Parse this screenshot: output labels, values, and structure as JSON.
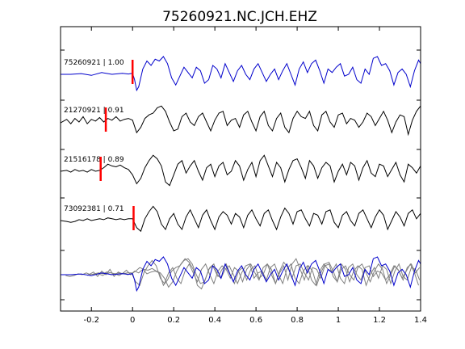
{
  "chart_data": {
    "type": "line",
    "title": "75260921.NC.JCH.EHZ",
    "xlabel": "",
    "ylabel": "",
    "xlim": [
      -0.35,
      1.4
    ],
    "xticks": [
      -0.2,
      0,
      0.2,
      0.4,
      0.6,
      0.8,
      1,
      1.2,
      1.4
    ],
    "xtick_labels": [
      "-0.2",
      "0",
      "0.2",
      "0.4",
      "0.6",
      "0.8",
      "1",
      "1.2",
      "1.4"
    ],
    "grid": false,
    "colors": {
      "master": "#0000cc",
      "trace": "#000000",
      "overlay_gray": "#808080",
      "pick": "#ff0000",
      "axes": "#000000"
    },
    "traces": [
      {
        "id": "75260921",
        "label": "75260921 | 1.00",
        "cc": 1.0,
        "color": "#0000cc",
        "pick_time": 0.0,
        "offset": 0.0,
        "times": [
          -0.35,
          -0.3,
          -0.25,
          -0.2,
          -0.15,
          -0.1,
          -0.05,
          -0.02,
          0.0,
          0.01,
          0.02,
          0.03,
          0.05,
          0.07,
          0.09,
          0.11,
          0.13,
          0.15,
          0.17,
          0.19,
          0.21,
          0.23,
          0.25,
          0.27,
          0.29,
          0.31,
          0.33,
          0.35,
          0.37,
          0.39,
          0.41,
          0.43,
          0.45,
          0.47,
          0.49,
          0.51,
          0.53,
          0.55,
          0.57,
          0.59,
          0.61,
          0.63,
          0.65,
          0.67,
          0.69,
          0.71,
          0.73,
          0.75,
          0.77,
          0.79,
          0.81,
          0.83,
          0.85,
          0.87,
          0.89,
          0.91,
          0.93,
          0.95,
          0.97,
          0.99,
          1.01,
          1.03,
          1.05,
          1.07,
          1.09,
          1.11,
          1.13,
          1.15,
          1.17,
          1.19,
          1.21,
          1.23,
          1.25,
          1.27,
          1.29,
          1.31,
          1.33,
          1.35,
          1.37,
          1.39,
          1.4
        ],
        "amplitudes": [
          0,
          0,
          0.04,
          -0.06,
          0.1,
          0.0,
          0.06,
          0.02,
          0.06,
          -0.3,
          -0.9,
          -0.7,
          0.3,
          0.75,
          0.5,
          0.85,
          0.75,
          1.0,
          0.6,
          -0.2,
          -0.6,
          -0.1,
          0.4,
          0.1,
          -0.2,
          0.4,
          0.2,
          -0.5,
          -0.3,
          0.5,
          0.3,
          -0.2,
          0.6,
          0.1,
          -0.4,
          0.2,
          0.5,
          0.0,
          -0.3,
          0.3,
          0.6,
          0.1,
          -0.4,
          0.0,
          0.3,
          -0.3,
          0.2,
          0.6,
          0.0,
          -0.6,
          0.3,
          0.7,
          0.1,
          0.6,
          0.8,
          0.2,
          -0.5,
          0.3,
          0.1,
          0.4,
          0.6,
          -0.1,
          0.0,
          0.4,
          -0.3,
          -0.5,
          0.3,
          0.0,
          0.9,
          1.0,
          0.5,
          0.6,
          0.2,
          -0.6,
          0.1,
          0.3,
          0.0,
          -0.7,
          0.2,
          0.8,
          0.6
        ]
      },
      {
        "id": "21270921",
        "label": "21270921 | 0.91",
        "cc": 0.91,
        "color": "#000000",
        "pick_time": -0.13,
        "offset": -0.13,
        "times": [
          -0.35,
          -0.32,
          -0.3,
          -0.28,
          -0.26,
          -0.24,
          -0.22,
          -0.2,
          -0.18,
          -0.16,
          -0.14,
          -0.12,
          -0.1,
          -0.08,
          -0.06,
          -0.04,
          -0.02,
          0.0,
          0.02,
          0.04,
          0.06,
          0.08,
          0.1,
          0.12,
          0.14,
          0.16,
          0.18,
          0.2,
          0.22,
          0.24,
          0.26,
          0.28,
          0.3,
          0.32,
          0.34,
          0.36,
          0.38,
          0.4,
          0.42,
          0.44,
          0.46,
          0.48,
          0.5,
          0.52,
          0.54,
          0.56,
          0.58,
          0.6,
          0.62,
          0.64,
          0.66,
          0.68,
          0.7,
          0.72,
          0.74,
          0.76,
          0.78,
          0.8,
          0.82,
          0.84,
          0.86,
          0.88,
          0.9,
          0.92,
          0.94,
          0.96,
          0.98,
          1.0,
          1.02,
          1.04,
          1.06,
          1.08,
          1.1,
          1.12,
          1.14,
          1.16,
          1.18,
          1.2,
          1.22,
          1.24,
          1.26,
          1.28,
          1.3,
          1.32,
          1.34,
          1.36,
          1.38,
          1.4
        ],
        "amplitudes": [
          -0.05,
          0.15,
          -0.1,
          0.2,
          0.0,
          0.3,
          -0.1,
          0.15,
          0.05,
          0.25,
          0.0,
          0.2,
          0.1,
          0.3,
          0.05,
          0.15,
          0.2,
          0.1,
          -0.6,
          -0.3,
          0.2,
          0.4,
          0.5,
          0.8,
          0.9,
          0.6,
          0.0,
          -0.5,
          -0.4,
          0.3,
          0.5,
          0.0,
          -0.2,
          0.3,
          0.5,
          0.0,
          -0.5,
          0.1,
          0.5,
          0.6,
          -0.2,
          0.1,
          0.2,
          -0.3,
          0.4,
          0.6,
          0.0,
          -0.5,
          0.3,
          0.6,
          -0.2,
          -0.5,
          0.2,
          0.5,
          -0.3,
          -0.6,
          0.2,
          0.6,
          0.3,
          0.2,
          0.6,
          -0.2,
          -0.5,
          0.4,
          0.6,
          0.0,
          -0.3,
          0.4,
          0.5,
          -0.1,
          0.2,
          0.1,
          -0.3,
          0.0,
          0.5,
          0.3,
          -0.2,
          0.2,
          0.6,
          0.1,
          -0.6,
          0.0,
          0.4,
          0.3,
          -0.7,
          0.1,
          0.6,
          0.9
        ]
      },
      {
        "id": "21516178",
        "label": "21516178 | 0.89",
        "cc": 0.89,
        "color": "#000000",
        "pick_time": -0.155,
        "offset": -0.155,
        "times": [
          -0.35,
          -0.32,
          -0.3,
          -0.28,
          -0.26,
          -0.24,
          -0.22,
          -0.2,
          -0.18,
          -0.16,
          -0.14,
          -0.12,
          -0.1,
          -0.08,
          -0.06,
          -0.04,
          -0.02,
          0.0,
          0.02,
          0.04,
          0.06,
          0.08,
          0.1,
          0.12,
          0.14,
          0.16,
          0.18,
          0.2,
          0.22,
          0.24,
          0.26,
          0.28,
          0.3,
          0.32,
          0.34,
          0.36,
          0.38,
          0.4,
          0.42,
          0.44,
          0.46,
          0.48,
          0.5,
          0.52,
          0.54,
          0.56,
          0.58,
          0.6,
          0.62,
          0.64,
          0.66,
          0.68,
          0.7,
          0.72,
          0.74,
          0.76,
          0.78,
          0.8,
          0.82,
          0.84,
          0.86,
          0.88,
          0.9,
          0.92,
          0.94,
          0.96,
          0.98,
          1.0,
          1.02,
          1.04,
          1.06,
          1.08,
          1.1,
          1.12,
          1.14,
          1.16,
          1.18,
          1.2,
          1.22,
          1.24,
          1.26,
          1.28,
          1.3,
          1.32,
          1.34,
          1.36,
          1.38,
          1.4
        ],
        "amplitudes": [
          0.0,
          0.05,
          -0.05,
          0.1,
          0.0,
          0.05,
          -0.05,
          0.1,
          0.0,
          0.05,
          0.2,
          0.4,
          0.3,
          0.25,
          0.35,
          0.2,
          0.1,
          -0.2,
          -0.7,
          -0.4,
          0.2,
          0.6,
          0.9,
          0.7,
          0.3,
          -0.6,
          -0.8,
          -0.2,
          0.4,
          0.6,
          -0.1,
          0.3,
          0.6,
          0.0,
          -0.5,
          0.2,
          0.4,
          -0.3,
          0.3,
          0.5,
          -0.2,
          0.0,
          0.6,
          0.3,
          -0.5,
          0.1,
          0.5,
          -0.3,
          0.6,
          0.9,
          0.3,
          -0.3,
          0.5,
          0.2,
          -0.6,
          0.1,
          0.6,
          0.7,
          0.2,
          -0.4,
          0.6,
          0.3,
          -0.4,
          0.2,
          0.5,
          0.3,
          -0.6,
          0.0,
          0.4,
          -0.2,
          0.5,
          0.3,
          -0.5,
          0.2,
          0.6,
          -0.1,
          -0.3,
          0.4,
          0.3,
          -0.3,
          0.1,
          0.5,
          -0.2,
          -0.6,
          0.4,
          0.2,
          -0.1,
          0.3
        ]
      },
      {
        "id": "73092381",
        "label": "73092381 | 0.71",
        "cc": 0.71,
        "color": "#000000",
        "pick_time": 0.005,
        "offset": 0.005,
        "times": [
          -0.35,
          -0.32,
          -0.3,
          -0.28,
          -0.26,
          -0.24,
          -0.22,
          -0.2,
          -0.18,
          -0.16,
          -0.14,
          -0.12,
          -0.1,
          -0.08,
          -0.06,
          -0.04,
          -0.02,
          0.0,
          0.02,
          0.04,
          0.06,
          0.08,
          0.1,
          0.12,
          0.14,
          0.16,
          0.18,
          0.2,
          0.22,
          0.24,
          0.26,
          0.28,
          0.3,
          0.32,
          0.34,
          0.36,
          0.38,
          0.4,
          0.42,
          0.44,
          0.46,
          0.48,
          0.5,
          0.52,
          0.54,
          0.56,
          0.58,
          0.6,
          0.62,
          0.64,
          0.66,
          0.68,
          0.7,
          0.72,
          0.74,
          0.76,
          0.78,
          0.8,
          0.82,
          0.84,
          0.86,
          0.88,
          0.9,
          0.92,
          0.94,
          0.96,
          0.98,
          1.0,
          1.02,
          1.04,
          1.06,
          1.08,
          1.1,
          1.12,
          1.14,
          1.16,
          1.18,
          1.2,
          1.22,
          1.24,
          1.26,
          1.28,
          1.3,
          1.32,
          1.34,
          1.36,
          1.38,
          1.4
        ],
        "amplitudes": [
          0.0,
          -0.05,
          -0.1,
          -0.05,
          0.05,
          0.0,
          0.1,
          0.0,
          0.05,
          0.1,
          0.05,
          0.15,
          0.1,
          0.05,
          0.1,
          0.05,
          0.1,
          0.1,
          -0.4,
          -0.6,
          0.1,
          0.5,
          0.8,
          0.5,
          -0.2,
          -0.5,
          0.1,
          0.4,
          -0.2,
          -0.5,
          0.2,
          0.6,
          0.1,
          -0.4,
          0.3,
          0.6,
          0.0,
          -0.5,
          0.2,
          0.5,
          0.3,
          -0.2,
          0.4,
          0.2,
          -0.4,
          0.3,
          0.6,
          0.1,
          -0.3,
          0.4,
          0.6,
          0.0,
          -0.5,
          0.2,
          0.7,
          0.4,
          -0.2,
          0.5,
          0.6,
          0.1,
          -0.3,
          0.4,
          0.3,
          -0.2,
          0.5,
          0.6,
          -0.1,
          -0.4,
          0.3,
          0.5,
          0.0,
          -0.3,
          0.4,
          0.6,
          0.1,
          -0.4,
          0.2,
          0.6,
          0.3,
          -0.5,
          0.0,
          0.5,
          0.2,
          -0.3,
          0.4,
          0.6,
          0.1,
          0.4
        ]
      }
    ],
    "stack": {
      "description_free": true,
      "members": [
        "75260921",
        "21270921",
        "21516178",
        "73092381"
      ]
    }
  }
}
